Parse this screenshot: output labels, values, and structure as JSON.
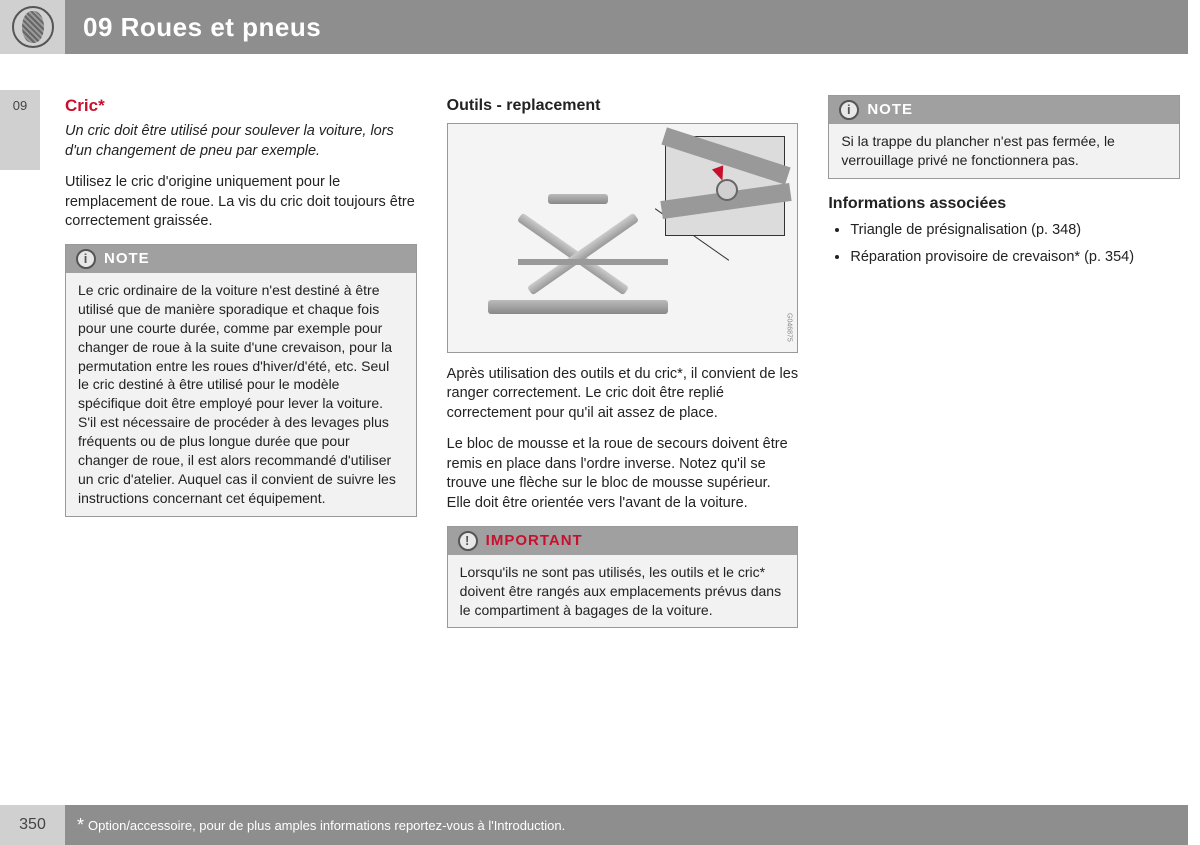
{
  "header": {
    "chapter": "09 Roues et pneus",
    "tab": "09"
  },
  "col1": {
    "title": "Cric*",
    "intro": "Un cric doit être utilisé pour soulever la voiture, lors d'un changement de pneu par exemple.",
    "p1": "Utilisez le cric d'origine uniquement pour le remplacement de roue. La vis du cric doit toujours être correctement graissée.",
    "note_label": "NOTE",
    "note_body": "Le cric ordinaire de la voiture n'est destiné à être utilisé que de manière sporadique et chaque fois pour une courte durée, comme par exemple pour changer de roue à la suite d'une crevaison, pour la permutation entre les roues d'hiver/d'été, etc. Seul le cric destiné à être utilisé pour le modèle spécifique doit être employé pour lever la voiture. S'il est nécessaire de procéder à des levages plus fréquents ou de plus longue durée que pour changer de roue, il est alors recommandé d'utiliser un cric d'atelier. Auquel cas il convient de suivre les instructions concernant cet équipement."
  },
  "col2": {
    "title": "Outils - replacement",
    "figure_id": "G046875",
    "p1": "Après utilisation des outils et du cric*, il convient de les ranger correctement. Le cric doit être replié correctement pour qu'il ait assez de place.",
    "p2": "Le bloc de mousse et la roue de secours doivent être remis en place dans l'ordre inverse. Notez qu'il se trouve une flèche sur le bloc de mousse supérieur. Elle doit être orientée vers l'avant de la voiture.",
    "imp_label": "IMPORTANT",
    "imp_body": "Lorsqu'ils ne sont pas utilisés, les outils et le cric* doivent être rangés aux emplacements prévus dans le compartiment à bagages de la voiture."
  },
  "col3": {
    "note_label": "NOTE",
    "note_body": "Si la trappe du plancher n'est pas fermée, le verrouillage privé ne fonctionnera pas.",
    "assoc_title": "Informations associées",
    "links": [
      "Triangle de présignalisation (p. 348)",
      "Réparation provisoire de crevaison* (p. 354)"
    ]
  },
  "footer": {
    "page": "350",
    "note": "Option/accessoire, pour de plus amples informations reportez-vous à l'Introduction."
  }
}
